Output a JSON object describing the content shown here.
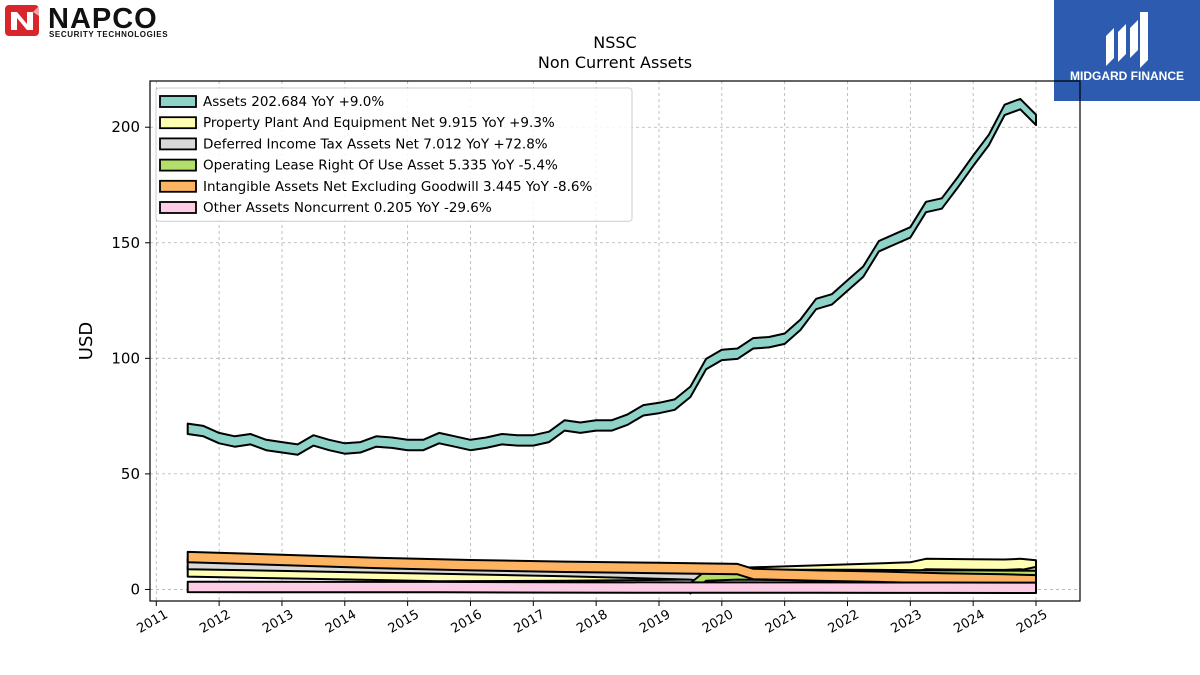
{
  "logos": {
    "left": {
      "brand": "NAPCO",
      "tagline": "SECURITY TECHNOLOGIES",
      "color": "#d9262c"
    },
    "right": {
      "brand": "MIDGARD FINANCE",
      "color": "#2d5bb0"
    }
  },
  "chart_data": {
    "type": "area",
    "title": "NSSC",
    "subtitle": "Non Current  Assets",
    "ylabel": "USD",
    "xlabel": "",
    "xlim": [
      2010.9,
      2025.7
    ],
    "ylim": [
      -5,
      220
    ],
    "xticks": [
      "2011",
      "2012",
      "2013",
      "2014",
      "2015",
      "2016",
      "2017",
      "2018",
      "2019",
      "2020",
      "2021",
      "2022",
      "2023",
      "2024",
      "2025"
    ],
    "yticks": [
      0,
      50,
      100,
      150,
      200
    ],
    "grid": true,
    "legend_position": "top-left",
    "series": [
      {
        "name": "Assets",
        "legend": "Assets  202.684 YoY +9.0%",
        "color": "#8dd3c7",
        "points": [
          [
            2011.5,
            69
          ],
          [
            2011.75,
            68
          ],
          [
            2012.0,
            65
          ],
          [
            2012.25,
            63.5
          ],
          [
            2012.5,
            64.5
          ],
          [
            2012.75,
            62
          ],
          [
            2013.0,
            61
          ],
          [
            2013.25,
            60
          ],
          [
            2013.5,
            64
          ],
          [
            2013.75,
            62
          ],
          [
            2014.0,
            60.5
          ],
          [
            2014.25,
            61
          ],
          [
            2014.5,
            63.5
          ],
          [
            2014.75,
            63
          ],
          [
            2015.0,
            62
          ],
          [
            2015.25,
            62
          ],
          [
            2015.5,
            65
          ],
          [
            2015.75,
            63.5
          ],
          [
            2016.0,
            62
          ],
          [
            2016.25,
            63
          ],
          [
            2016.5,
            64.5
          ],
          [
            2016.75,
            64
          ],
          [
            2017.0,
            64
          ],
          [
            2017.25,
            65.5
          ],
          [
            2017.5,
            70.5
          ],
          [
            2017.75,
            69.5
          ],
          [
            2018.0,
            70.5
          ],
          [
            2018.25,
            70.5
          ],
          [
            2018.5,
            73
          ],
          [
            2018.75,
            77
          ],
          [
            2019.0,
            78
          ],
          [
            2019.25,
            79.5
          ],
          [
            2019.5,
            85
          ],
          [
            2019.75,
            97
          ],
          [
            2020.0,
            101
          ],
          [
            2020.25,
            101.5
          ],
          [
            2020.5,
            106
          ],
          [
            2020.75,
            106.5
          ],
          [
            2021.0,
            108
          ],
          [
            2021.25,
            114
          ],
          [
            2021.5,
            123
          ],
          [
            2021.75,
            125
          ],
          [
            2022.0,
            131
          ],
          [
            2022.25,
            137
          ],
          [
            2022.5,
            148
          ],
          [
            2022.75,
            151
          ],
          [
            2023.0,
            154
          ],
          [
            2023.25,
            165
          ],
          [
            2023.5,
            166.5
          ],
          [
            2023.75,
            175.5
          ],
          [
            2024.0,
            185
          ],
          [
            2024.25,
            194
          ],
          [
            2024.5,
            207
          ],
          [
            2024.75,
            209.5
          ],
          [
            2025.0,
            202.684
          ]
        ]
      },
      {
        "name": "Property Plant And Equipment Net",
        "legend": "Property Plant And Equipment Net  9.915 YoY +9.3%",
        "color": "#ffffb3",
        "points": [
          [
            2011.5,
            7.3
          ],
          [
            2013.5,
            6.3
          ],
          [
            2015.5,
            5.3
          ],
          [
            2017.5,
            5.5
          ],
          [
            2019.5,
            6
          ],
          [
            2021.0,
            7.2
          ],
          [
            2022.5,
            8.5
          ],
          [
            2023.0,
            9
          ],
          [
            2023.25,
            10.5
          ],
          [
            2024.0,
            10.3
          ],
          [
            2024.5,
            10.2
          ],
          [
            2024.75,
            10.5
          ],
          [
            2025.0,
            9.915
          ]
        ]
      },
      {
        "name": "Deferred Income Tax Assets Net",
        "legend": "Deferred Income Tax Assets Net  7.012 YoY +72.8%",
        "color": "#d9d9d9",
        "points": [
          [
            2011.5,
            10.5
          ],
          [
            2013.5,
            9.5
          ],
          [
            2015.5,
            8.5
          ],
          [
            2017.5,
            7.5
          ],
          [
            2019.5,
            6
          ],
          [
            2019.75,
            5
          ],
          [
            2020.25,
            4
          ],
          [
            2021.5,
            3.5
          ],
          [
            2022.5,
            3.5
          ],
          [
            2023.5,
            4
          ],
          [
            2024.5,
            4.1
          ],
          [
            2025.0,
            7.012
          ]
        ]
      },
      {
        "name": "Operating Lease Right Of Use Asset",
        "legend": "Operating Lease Right Of Use Asset  5.335 YoY -5.4%",
        "color": "#b3de69",
        "points": [
          [
            2019.5,
            0
          ],
          [
            2019.75,
            5.5
          ],
          [
            2020.25,
            6
          ],
          [
            2021.0,
            5.8
          ],
          [
            2022.0,
            5.8
          ],
          [
            2022.5,
            5.7
          ],
          [
            2023.0,
            5.6
          ],
          [
            2023.5,
            5.5
          ],
          [
            2024.0,
            5.5
          ],
          [
            2024.5,
            5.4
          ],
          [
            2025.0,
            5.335
          ]
        ]
      },
      {
        "name": "Intangible Assets Net Excluding Goodwill",
        "legend": "Intangible Assets Net Excluding Goodwill  3.445 YoY -8.6%",
        "color": "#fdb462",
        "points": [
          [
            2011.5,
            13.5
          ],
          [
            2013.0,
            12.3
          ],
          [
            2014.5,
            11
          ],
          [
            2016.0,
            10
          ],
          [
            2017.5,
            9.3
          ],
          [
            2019.0,
            8.8
          ],
          [
            2020.25,
            8.3
          ],
          [
            2020.5,
            6.2
          ],
          [
            2021.5,
            5.5
          ],
          [
            2022.5,
            5
          ],
          [
            2023.5,
            4.3
          ],
          [
            2024.5,
            3.8
          ],
          [
            2025.0,
            3.445
          ]
        ]
      },
      {
        "name": "Other Assets Noncurrent",
        "legend": "Other Assets Noncurrent  0.205 YoY -29.6%",
        "color": "#fccde5",
        "points": [
          [
            2011.5,
            0.6
          ],
          [
            2013.5,
            0.5
          ],
          [
            2015.5,
            0.5
          ],
          [
            2017.5,
            0.4
          ],
          [
            2019.5,
            0.3
          ],
          [
            2021.5,
            0.3
          ],
          [
            2023.5,
            0.25
          ],
          [
            2025.0,
            0.205
          ]
        ]
      }
    ]
  }
}
